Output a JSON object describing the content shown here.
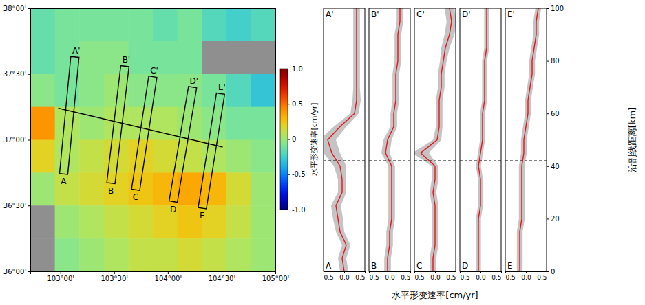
{
  "chart_data": [
    {
      "type": "map",
      "xlim": [
        102.72,
        105.0
      ],
      "ylim": [
        36.0,
        38.0
      ],
      "xticks": [
        {
          "value": 103.0,
          "label": "103°00'"
        },
        {
          "value": 103.5,
          "label": "103°30'"
        },
        {
          "value": 104.0,
          "label": "104°00'"
        },
        {
          "value": 104.5,
          "label": "104°30'"
        },
        {
          "value": 105.0,
          "label": "105°00'"
        }
      ],
      "yticks": [
        {
          "value": 36.0,
          "label": "36°00'"
        },
        {
          "value": 36.5,
          "label": "36°30'"
        },
        {
          "value": 37.0,
          "label": "37°00'"
        },
        {
          "value": 37.5,
          "label": "37°30'"
        },
        {
          "value": 38.0,
          "label": "38°00'"
        }
      ],
      "cells": {
        "x_edges": [
          102.72,
          102.948,
          103.176,
          103.404,
          103.632,
          103.86,
          104.088,
          104.316,
          104.544,
          104.772,
          105.0
        ],
        "y_edges": [
          38.0,
          37.75,
          37.5,
          37.25,
          37.0,
          36.75,
          36.5,
          36.25,
          36.0
        ],
        "values": [
          [
            -0.15,
            -0.1,
            -0.1,
            -0.1,
            -0.1,
            -0.15,
            -0.1,
            -0.2,
            -0.25,
            -0.2
          ],
          [
            -0.15,
            -0.1,
            -0.05,
            -0.05,
            -0.1,
            -0.1,
            -0.1,
            null,
            null,
            null
          ],
          [
            -0.05,
            -0.1,
            -0.05,
            0.0,
            -0.05,
            -0.05,
            -0.05,
            -0.1,
            -0.2,
            -0.3
          ],
          [
            0.4,
            0.05,
            0.0,
            0.05,
            0.05,
            0.05,
            0.0,
            -0.05,
            -0.1,
            -0.1
          ],
          [
            0.2,
            0.05,
            0.1,
            0.15,
            0.2,
            0.15,
            0.1,
            0.05,
            0.0,
            -0.05
          ],
          [
            0.0,
            0.1,
            0.15,
            0.2,
            0.25,
            0.3,
            0.35,
            0.3,
            0.15,
            0.0
          ],
          [
            null,
            0.0,
            0.05,
            0.1,
            0.15,
            0.2,
            0.25,
            0.2,
            0.1,
            0.0
          ],
          [
            null,
            -0.05,
            0.0,
            0.05,
            0.1,
            0.1,
            0.15,
            0.1,
            0.05,
            0.0
          ]
        ]
      },
      "colorbar": {
        "title": "水平形变速率[cm/yr]",
        "range": [
          -1.0,
          1.0
        ],
        "ticks": [
          {
            "value": 1.0,
            "label": "1.0"
          },
          {
            "value": 0.5,
            "label": "0.5"
          },
          0,
          {
            "value": -0.5,
            "label": "-0.5"
          },
          {
            "value": -1.0,
            "label": "-1.0"
          }
        ]
      },
      "profiles": [
        {
          "start_label": "A",
          "end_label": "A'",
          "start": [
            103.03,
            36.74
          ],
          "end": [
            103.135,
            37.63
          ]
        },
        {
          "start_label": "B",
          "end_label": "B'",
          "start": [
            103.47,
            36.67
          ],
          "end": [
            103.6,
            37.56
          ]
        },
        {
          "start_label": "C",
          "end_label": "C'",
          "start": [
            103.7,
            36.62
          ],
          "end": [
            103.86,
            37.48
          ]
        },
        {
          "start_label": "D",
          "end_label": "D'",
          "start": [
            104.05,
            36.53
          ],
          "end": [
            104.23,
            37.4
          ]
        },
        {
          "start_label": "E",
          "end_label": "E'",
          "start": [
            104.32,
            36.48
          ],
          "end": [
            104.49,
            37.35
          ]
        }
      ],
      "line": {
        "start": [
          102.98,
          37.24
        ],
        "end": [
          104.51,
          36.945
        ]
      }
    },
    {
      "type": "line",
      "xlabel": "水平形变速率[cm/yr]",
      "ylabel": "沿剖线距离[km]",
      "xlim": [
        0.5,
        -0.5
      ],
      "xticks": [
        {
          "value": 0.5,
          "label": "0.5"
        },
        {
          "value": 0.0,
          "label": "0.0"
        },
        {
          "value": -0.5,
          "label": "-0.5"
        }
      ],
      "ylim": [
        0,
        100
      ],
      "yticks": [
        0,
        20,
        40,
        60,
        80,
        100
      ],
      "reference_line": 42,
      "color": "#e8141c",
      "y": [
        0,
        5,
        10,
        15,
        20,
        25,
        30,
        35,
        40,
        45,
        50,
        55,
        60,
        65,
        70,
        75,
        80,
        85,
        90,
        95,
        100
      ],
      "panels": [
        {
          "title": "A'",
          "bottom_label": "A",
          "values": [
            0.0,
            0.05,
            -0.05,
            0.1,
            0.15,
            0.2,
            0.05,
            0.05,
            0.1,
            0.3,
            0.4,
            0.1,
            -0.25,
            -0.3,
            -0.3,
            -0.3,
            -0.3,
            -0.3,
            -0.3,
            -0.3,
            -0.3
          ],
          "spread": [
            0.1,
            0.1,
            0.1,
            0.1,
            0.12,
            0.12,
            0.1,
            0.1,
            0.15,
            0.2,
            0.2,
            0.15,
            0.1,
            0.1,
            0.08,
            0.08,
            0.08,
            0.08,
            0.08,
            0.08,
            0.08
          ]
        },
        {
          "title": "B'",
          "bottom_label": "B",
          "values": [
            0.05,
            0.05,
            0.0,
            0.0,
            -0.05,
            -0.05,
            -0.05,
            -0.05,
            -0.05,
            0.1,
            0.05,
            -0.1,
            -0.1,
            -0.15,
            -0.15,
            -0.15,
            -0.2,
            -0.2,
            -0.2,
            -0.25,
            -0.25
          ],
          "spread": [
            0.08,
            0.08,
            0.08,
            0.08,
            0.08,
            0.08,
            0.08,
            0.08,
            0.08,
            0.1,
            0.1,
            0.08,
            0.08,
            0.08,
            0.08,
            0.08,
            0.08,
            0.08,
            0.08,
            0.08,
            0.08
          ]
        },
        {
          "title": "C'",
          "bottom_label": "C",
          "values": [
            0.05,
            0.05,
            0.0,
            0.0,
            0.0,
            0.0,
            0.05,
            0.0,
            0.0,
            0.35,
            -0.05,
            -0.1,
            -0.1,
            -0.1,
            -0.15,
            -0.15,
            -0.2,
            -0.25,
            -0.35,
            -0.4,
            -0.35
          ],
          "spread": [
            0.08,
            0.08,
            0.08,
            0.08,
            0.08,
            0.08,
            0.08,
            0.08,
            0.08,
            0.2,
            0.1,
            0.08,
            0.08,
            0.08,
            0.08,
            0.08,
            0.08,
            0.1,
            0.12,
            0.12,
            0.12
          ]
        },
        {
          "title": "D'",
          "bottom_label": "D",
          "values": [
            0.05,
            0.05,
            0.05,
            0.05,
            0.05,
            0.0,
            0.0,
            0.0,
            0.05,
            0.0,
            -0.05,
            -0.05,
            -0.05,
            -0.1,
            -0.1,
            -0.1,
            -0.1,
            -0.15,
            -0.15,
            -0.15,
            -0.15
          ],
          "spread": [
            0.06,
            0.06,
            0.06,
            0.06,
            0.06,
            0.06,
            0.06,
            0.06,
            0.06,
            0.06,
            0.06,
            0.06,
            0.06,
            0.06,
            0.06,
            0.06,
            0.06,
            0.06,
            0.06,
            0.06,
            0.06
          ]
        },
        {
          "title": "E'",
          "bottom_label": "E",
          "values": [
            0.15,
            0.15,
            0.15,
            0.15,
            0.1,
            0.1,
            0.1,
            0.1,
            0.1,
            0.05,
            0.05,
            0.0,
            -0.05,
            -0.05,
            -0.1,
            -0.15,
            -0.15,
            -0.2,
            -0.25,
            -0.25,
            -0.3
          ],
          "spread": [
            0.07,
            0.07,
            0.07,
            0.07,
            0.07,
            0.07,
            0.07,
            0.07,
            0.07,
            0.07,
            0.07,
            0.07,
            0.07,
            0.07,
            0.07,
            0.07,
            0.07,
            0.07,
            0.07,
            0.07,
            0.07
          ]
        }
      ]
    }
  ]
}
